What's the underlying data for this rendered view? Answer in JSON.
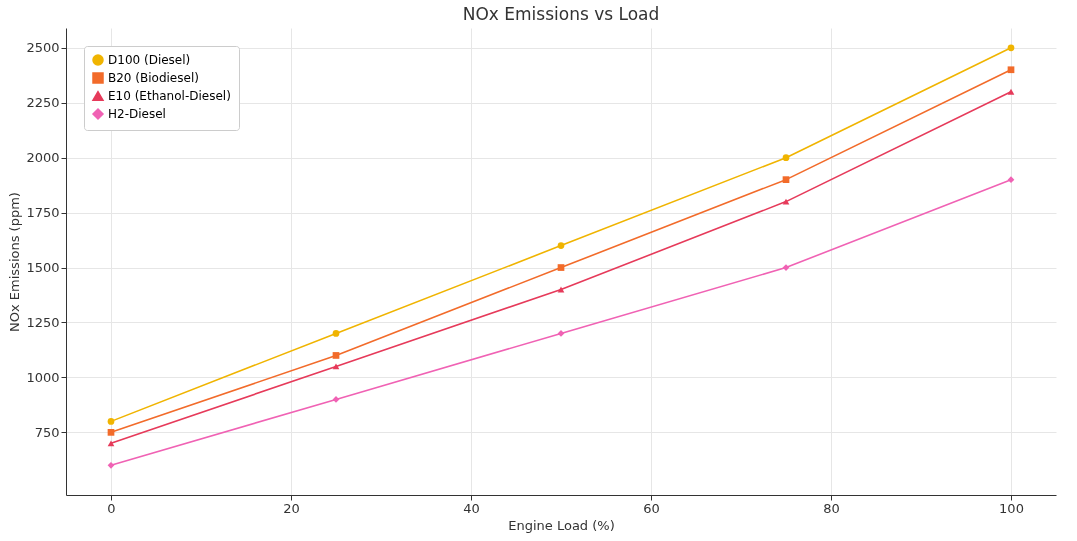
{
  "chart_data": {
    "type": "line",
    "title": "NOx Emissions vs Load",
    "xlabel": "Engine Load (%)",
    "ylabel": "NOx Emissions (ppm)",
    "x": [
      0,
      25,
      50,
      75,
      100
    ],
    "series": [
      {
        "name": "D100 (Diesel)",
        "color": "#f0b400",
        "marker": "circle",
        "values": [
          800,
          1200,
          1600,
          2000,
          2500
        ]
      },
      {
        "name": "B20 (Biodiesel)",
        "color": "#f26b2a",
        "marker": "square",
        "values": [
          750,
          1100,
          1500,
          1900,
          2400
        ]
      },
      {
        "name": "E10 (Ethanol-Diesel)",
        "color": "#e63a5a",
        "marker": "triangle",
        "values": [
          700,
          1050,
          1400,
          1800,
          2300
        ]
      },
      {
        "name": "H2-Diesel",
        "color": "#f062b4",
        "marker": "diamond",
        "values": [
          600,
          900,
          1200,
          1500,
          1900
        ]
      }
    ],
    "xlim": [
      -5,
      105
    ],
    "xticks": [
      0,
      20,
      40,
      60,
      80,
      100
    ],
    "ylim": [
      465,
      2590
    ],
    "yticks": [
      750,
      1000,
      1250,
      1500,
      1750,
      2000,
      2250,
      2500
    ],
    "grid": true,
    "legend": "top left",
    "line_style": "solid"
  }
}
